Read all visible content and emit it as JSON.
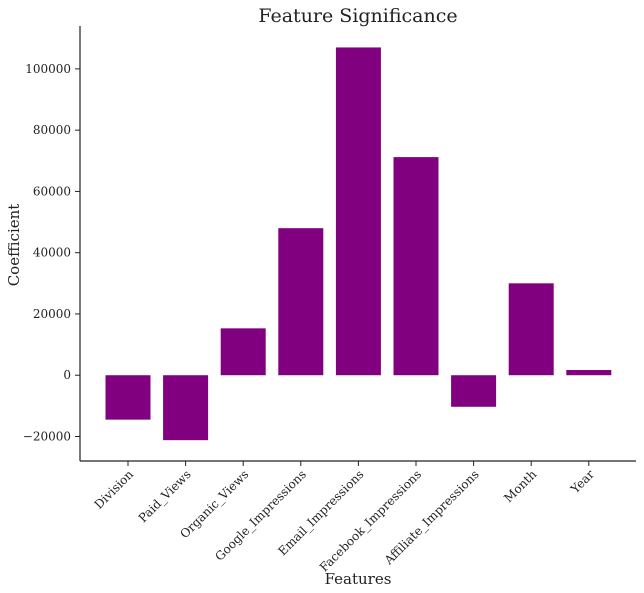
{
  "chart_data": {
    "type": "bar",
    "title": "Feature Significance",
    "xlabel": "Features",
    "ylabel": "Coefficient",
    "categories": [
      "Division",
      "Paid_Views",
      "Organic_Views",
      "Google_Impressions",
      "Email_Impressions",
      "Facebook_Impressions",
      "Affiliate_Impressions",
      "Month",
      "Year"
    ],
    "values": [
      -14500,
      -21200,
      15300,
      48000,
      107000,
      71200,
      -10300,
      30000,
      1700
    ],
    "ylim": [
      -28000,
      114000
    ],
    "yticks": [
      -20000,
      0,
      20000,
      40000,
      60000,
      80000,
      100000
    ],
    "ytick_labels": [
      "−20000",
      "0",
      "20000",
      "40000",
      "60000",
      "80000",
      "100000"
    ],
    "grid": false,
    "bar_color": "#800080",
    "legend": null
  }
}
